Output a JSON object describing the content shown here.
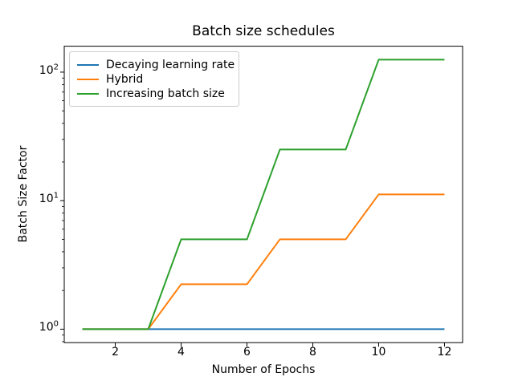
{
  "chart_data": {
    "type": "line",
    "title": "Batch size schedules",
    "xlabel": "Number of Epochs",
    "ylabel": "Batch Size Factor",
    "yscale": "log",
    "grid": false,
    "legend_position": "upper left",
    "x": [
      1,
      2,
      3,
      4,
      5,
      6,
      7,
      8,
      9,
      10,
      11,
      12
    ],
    "series": [
      {
        "name": "Decaying learning rate",
        "color": "#1f77b4",
        "values": [
          1,
          1,
          1,
          1,
          1,
          1,
          1,
          1,
          1,
          1,
          1,
          1
        ]
      },
      {
        "name": "Hybrid",
        "color": "#ff7f0e",
        "values": [
          1,
          1,
          1,
          2.236,
          2.236,
          2.236,
          5,
          5,
          5,
          11.18,
          11.18,
          11.18
        ]
      },
      {
        "name": "Increasing batch size",
        "color": "#2ca02c",
        "values": [
          1,
          1,
          1,
          5,
          5,
          5,
          25,
          25,
          25,
          125,
          125,
          125
        ]
      }
    ],
    "x_ticks": [
      2,
      4,
      6,
      8,
      10,
      12
    ],
    "y_major_tick_exponents": [
      0,
      1,
      2
    ],
    "y_major_tick_values": [
      1,
      10,
      100
    ],
    "y_minor_tick_values": [
      0.8,
      0.9,
      2,
      3,
      4,
      5,
      6,
      7,
      8,
      9,
      20,
      30,
      40,
      50,
      60,
      70,
      80,
      90
    ],
    "xlim": [
      0.45,
      12.55
    ],
    "ylim_log10": [
      -0.1048,
      2.2018
    ]
  }
}
